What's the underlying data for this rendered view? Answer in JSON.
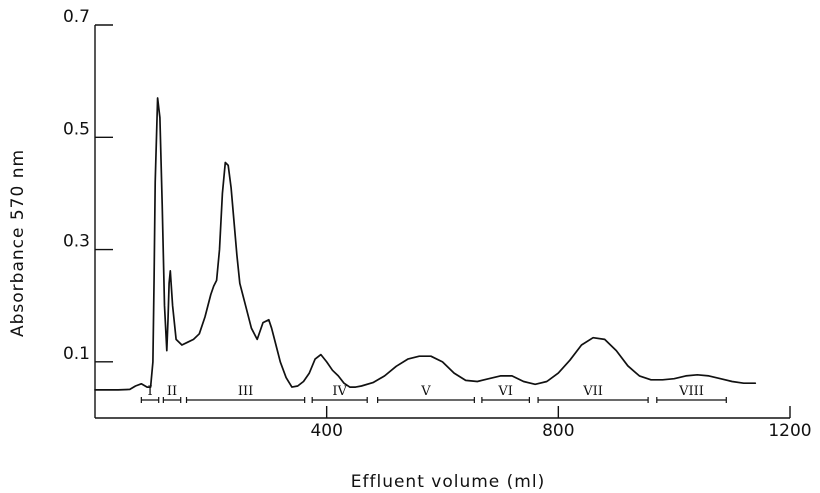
{
  "chart_data": {
    "type": "line",
    "title": "",
    "xlabel": "Effluent volume (ml)",
    "ylabel": "Absorbance 570 nm",
    "xlim": [
      0,
      1200
    ],
    "ylim": [
      0,
      0.7
    ],
    "x_ticks": [
      400,
      800,
      1200
    ],
    "x_tick_labels": [
      "400",
      "800",
      "1200"
    ],
    "y_ticks": [
      0.1,
      0.3,
      0.5,
      0.7
    ],
    "y_tick_labels": [
      "0.1",
      "0.3",
      "0.5",
      "0.7"
    ],
    "grid": false,
    "series": [
      {
        "x": [
          0,
          40,
          60,
          70,
          80,
          90,
          96,
          100,
          102,
          104,
          108,
          112,
          116,
          120,
          124,
          126,
          128,
          130,
          134,
          140,
          150,
          160,
          170,
          180,
          190,
          200,
          205,
          210,
          215,
          220,
          225,
          230,
          235,
          240,
          245,
          250,
          255,
          260,
          270,
          280,
          290,
          300,
          305,
          310,
          315,
          320,
          330,
          340,
          350,
          360,
          370,
          380,
          390,
          400,
          410,
          420,
          430,
          440,
          450,
          460,
          480,
          500,
          520,
          540,
          560,
          580,
          600,
          620,
          640,
          660,
          680,
          700,
          720,
          740,
          760,
          780,
          800,
          820,
          840,
          860,
          880,
          900,
          920,
          940,
          960,
          980,
          1000,
          1020,
          1040,
          1060,
          1080,
          1100,
          1120,
          1140
        ],
        "y": [
          0.05,
          0.05,
          0.051,
          0.057,
          0.061,
          0.055,
          0.055,
          0.1,
          0.25,
          0.42,
          0.57,
          0.535,
          0.38,
          0.2,
          0.12,
          0.175,
          0.24,
          0.262,
          0.2,
          0.14,
          0.13,
          0.135,
          0.14,
          0.15,
          0.18,
          0.22,
          0.235,
          0.245,
          0.3,
          0.4,
          0.455,
          0.45,
          0.41,
          0.35,
          0.29,
          0.24,
          0.22,
          0.2,
          0.16,
          0.14,
          0.17,
          0.175,
          0.16,
          0.14,
          0.12,
          0.1,
          0.072,
          0.055,
          0.057,
          0.065,
          0.08,
          0.105,
          0.113,
          0.1,
          0.085,
          0.075,
          0.062,
          0.055,
          0.055,
          0.057,
          0.063,
          0.075,
          0.092,
          0.105,
          0.11,
          0.11,
          0.1,
          0.08,
          0.067,
          0.065,
          0.07,
          0.075,
          0.075,
          0.065,
          0.06,
          0.065,
          0.08,
          0.103,
          0.13,
          0.143,
          0.14,
          0.12,
          0.093,
          0.075,
          0.068,
          0.068,
          0.07,
          0.075,
          0.077,
          0.075,
          0.07,
          0.065,
          0.062,
          0.062
        ]
      }
    ],
    "fractions": [
      {
        "label": "I",
        "x_start": 80,
        "x_end": 110
      },
      {
        "label": "II",
        "x_start": 118,
        "x_end": 148
      },
      {
        "label": "III",
        "x_start": 158,
        "x_end": 362
      },
      {
        "label": "IV",
        "x_start": 375,
        "x_end": 470
      },
      {
        "label": "V",
        "x_start": 488,
        "x_end": 655
      },
      {
        "label": "VI",
        "x_start": 668,
        "x_end": 750
      },
      {
        "label": "VII",
        "x_start": 765,
        "x_end": 955
      },
      {
        "label": "VIII",
        "x_start": 970,
        "x_end": 1090
      }
    ]
  }
}
